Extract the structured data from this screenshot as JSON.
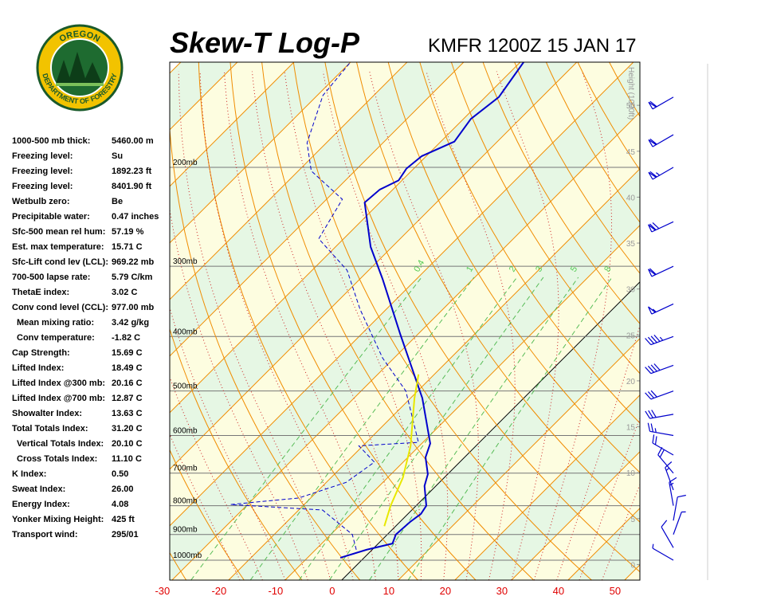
{
  "logo": {
    "top": "OREGON",
    "bottom": "DEPARTMENT OF FORESTRY"
  },
  "stats": [
    {
      "label": "1000-500 mb thick:",
      "value": "5460.00 m"
    },
    {
      "label": "Freezing level:",
      "value": "Su"
    },
    {
      "label": "Freezing level:",
      "value": "1892.23 ft"
    },
    {
      "label": "Freezing level:",
      "value": "8401.90 ft"
    },
    {
      "label": "Wetbulb zero:",
      "value": "Be"
    },
    {
      "label": "Precipitable water:",
      "value": "0.47 inches"
    },
    {
      "label": "Sfc-500 mean rel hum:",
      "value": "57.19 %"
    },
    {
      "label": "Est. max temperature:",
      "value": "15.71 C"
    },
    {
      "label": "Sfc-Lift cond lev (LCL):",
      "value": "969.22 mb"
    },
    {
      "label": "700-500 lapse rate:",
      "value": "5.79 C/km"
    },
    {
      "label": "ThetaE index:",
      "value": "3.02 C"
    },
    {
      "label": "Conv cond level (CCL):",
      "value": "977.00 mb"
    },
    {
      "label": "Mean mixing ratio:",
      "value": "3.42 g/kg"
    },
    {
      "label": "Conv temperature:",
      "value": "-1.82 C"
    },
    {
      "label": "Cap Strength:",
      "value": "15.69 C"
    },
    {
      "label": "Lifted Index:",
      "value": "18.49 C"
    },
    {
      "label": "Lifted Index @300 mb:",
      "value": "20.16 C"
    },
    {
      "label": "Lifted Index @700 mb:",
      "value": "12.87 C"
    },
    {
      "label": "Showalter Index:",
      "value": "13.63 C"
    },
    {
      "label": "Total Totals Index:",
      "value": "31.20 C"
    },
    {
      "label": "Vertical Totals Index:",
      "value": "20.10 C"
    },
    {
      "label": "Cross Totals Index:",
      "value": "11.10 C"
    },
    {
      "label": "K Index:",
      "value": "0.50"
    },
    {
      "label": "Sweat Index:",
      "value": "26.00"
    },
    {
      "label": "Energy Index:",
      "value": "4.08"
    },
    {
      "label": "Yonker Mixing Height:",
      "value": "425 ft"
    },
    {
      "label": "Transport wind:",
      "value": "295/01"
    }
  ],
  "chart_data": {
    "type": "skewt",
    "title": "Skew-T Log-P",
    "subtitle": "KMFR 1200Z 15 JAN 17",
    "ylog": true,
    "ylim": [
      1085,
      130
    ],
    "yticks": [
      {
        "value": 200,
        "label": "200mb"
      },
      {
        "value": 300,
        "label": "300mb"
      },
      {
        "value": 400,
        "label": "400mb"
      },
      {
        "value": 500,
        "label": "500mb"
      },
      {
        "value": 600,
        "label": "600mb"
      },
      {
        "value": 700,
        "label": "700mb"
      },
      {
        "value": 800,
        "label": "800mb"
      },
      {
        "value": 900,
        "label": "900mb"
      },
      {
        "value": 1000,
        "label": "1000mb"
      }
    ],
    "xlim": [
      -30.4,
      52.7
    ],
    "xticks": [
      -30,
      -20,
      -10,
      0,
      10,
      20,
      30,
      40,
      50
    ],
    "y2label": "Height (1000ft)",
    "y2lim": [
      -1.7,
      54.7
    ],
    "y2ticks": [
      0,
      5,
      10,
      15,
      20,
      25,
      30,
      35,
      40,
      45,
      50
    ],
    "mixing_ratios": [
      0.4,
      1,
      2,
      3,
      5,
      8
    ],
    "series": [
      {
        "color": "#0000cc",
        "dashed": false,
        "pressure": [
          990,
          958,
          934,
          900,
          855,
          827,
          800,
          738,
          703,
          656,
          620,
          515,
          397,
          316,
          277,
          231,
          219,
          211,
          201,
          191,
          180,
          164,
          150,
          130
        ],
        "values": [
          -4.2,
          -1.0,
          2.5,
          1.5,
          1.8,
          2.3,
          1.8,
          -2.0,
          -3.5,
          -6.9,
          -8.5,
          -17.9,
          -33.0,
          -46.0,
          -53.8,
          -62.7,
          -62.3,
          -60.6,
          -61.3,
          -60.8,
          -57.6,
          -58.7,
          -57.6,
          -59.4
        ]
      },
      {
        "color": "#0000cc",
        "dashed": true,
        "pressure": [
          958,
          900,
          814,
          796,
          775,
          727,
          669,
          626,
          617,
          500,
          437,
          358,
          305,
          268,
          228,
          203,
          181,
          149,
          130
        ],
        "values": [
          -2.8,
          -6.2,
          -15.8,
          -33.0,
          -22.1,
          -16.5,
          -15.1,
          -20.7,
          -10.8,
          -22.1,
          -32.0,
          -44.6,
          -53.8,
          -64.4,
          -67.2,
          -77.7,
          -83.4,
          -89.0,
          -90.0
        ]
      },
      {
        "color": "#e8e800",
        "dashed": false,
        "pressure": [
          870,
          800,
          713,
          627,
          515,
          467
        ],
        "values": [
          -2.0,
          -4.5,
          -7.3,
          -11.5,
          -19.3,
          -22.8
        ]
      }
    ],
    "wind": {
      "pressure": [
        1000,
        950,
        900,
        850,
        800,
        750,
        700,
        650,
        600,
        550,
        500,
        450,
        400,
        350,
        300,
        250,
        200,
        175,
        150
      ],
      "direction": [
        300,
        330,
        20,
        10,
        350,
        340,
        320,
        300,
        280,
        260,
        250,
        250,
        250,
        245,
        245,
        245,
        240,
        240,
        240
      ],
      "speed": [
        5,
        10,
        5,
        10,
        15,
        15,
        20,
        20,
        25,
        30,
        30,
        40,
        45,
        55,
        60,
        70,
        65,
        60,
        60
      ]
    }
  }
}
